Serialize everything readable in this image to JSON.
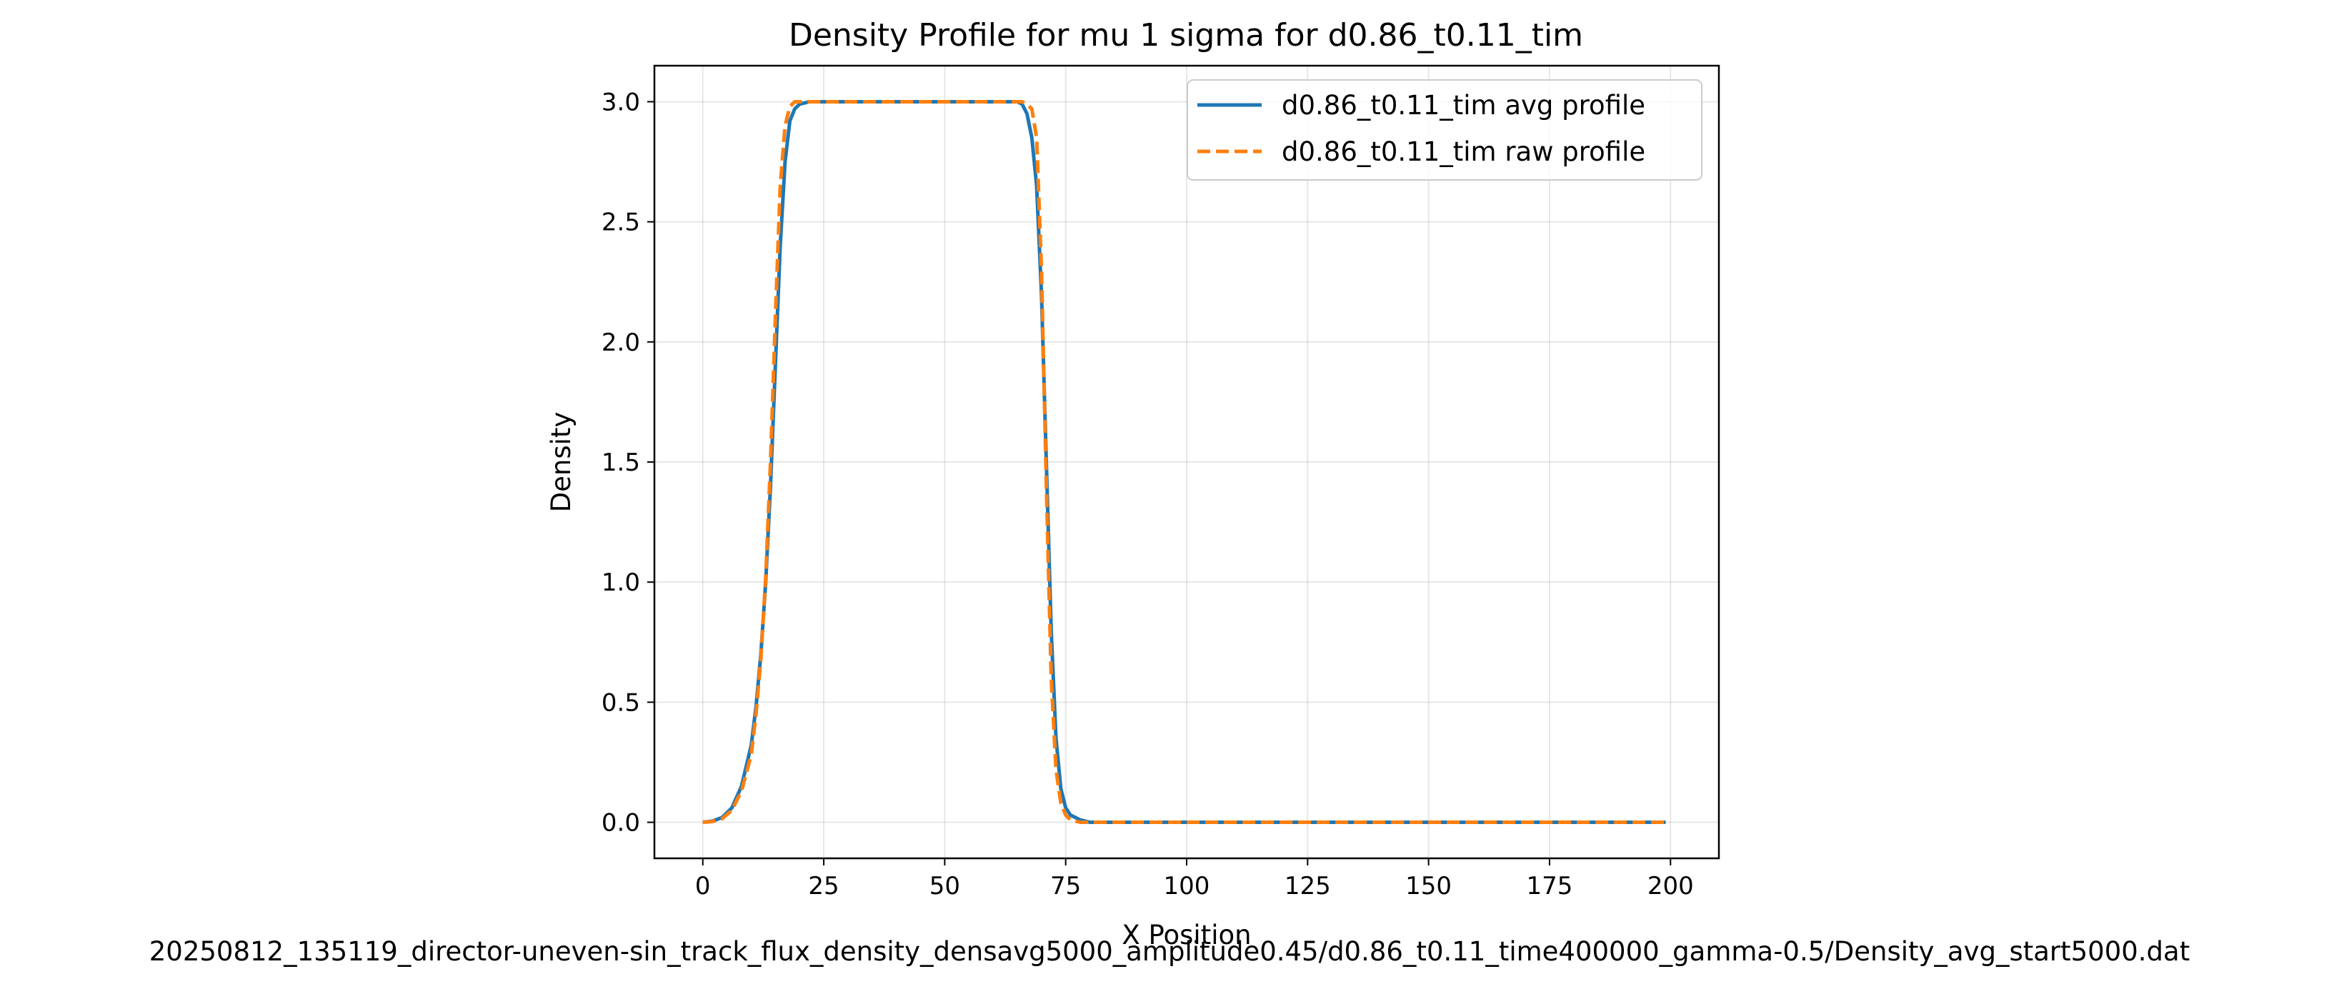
{
  "chart_data": {
    "type": "line",
    "title": "Density Profile for mu 1 sigma for d0.86_t0.11_tim",
    "xlabel": "X Position",
    "ylabel": "Density",
    "caption": "20250812_135119_director-uneven-sin_track_flux_density_densavg5000_amplitude0.45/d0.86_t0.11_time400000_gamma-0.5/Density_avg_start5000.dat",
    "xlim": [
      -10,
      210
    ],
    "ylim": [
      -0.15,
      3.15
    ],
    "x_ticks": [
      0,
      25,
      50,
      75,
      100,
      125,
      150,
      175,
      200
    ],
    "x_tick_labels": [
      "0",
      "25",
      "50",
      "75",
      "100",
      "125",
      "150",
      "175",
      "200"
    ],
    "y_ticks": [
      0.0,
      0.5,
      1.0,
      1.5,
      2.0,
      2.5,
      3.0
    ],
    "y_tick_labels": [
      "0.0",
      "0.5",
      "1.0",
      "1.5",
      "2.0",
      "2.5",
      "3.0"
    ],
    "grid": true,
    "legend_position": "upper right",
    "series": [
      {
        "name": "d0.86_t0.11_tim avg profile",
        "color": "#1f77b4",
        "style": "solid",
        "x": [
          0,
          2,
          4,
          6,
          8,
          10,
          11,
          12,
          13,
          14,
          15,
          16,
          17,
          18,
          19,
          20,
          22,
          25,
          30,
          40,
          50,
          60,
          65,
          66,
          67,
          68,
          69,
          70,
          71,
          72,
          73,
          74,
          75,
          76,
          78,
          80,
          90,
          100,
          125,
          150,
          175,
          199
        ],
        "y": [
          0.0,
          0.005,
          0.02,
          0.06,
          0.15,
          0.32,
          0.48,
          0.7,
          1.0,
          1.4,
          1.9,
          2.4,
          2.75,
          2.92,
          2.97,
          2.99,
          3.0,
          3.0,
          3.0,
          3.0,
          3.0,
          3.0,
          3.0,
          2.99,
          2.95,
          2.85,
          2.65,
          2.2,
          1.5,
          0.8,
          0.35,
          0.14,
          0.06,
          0.03,
          0.01,
          0.0,
          0.0,
          0.0,
          0.0,
          0.0,
          0.0,
          0.0
        ]
      },
      {
        "name": "d0.86_t0.11_tim raw profile",
        "color": "#ff7f0e",
        "style": "dashed",
        "x": [
          0,
          2,
          4,
          6,
          8,
          10,
          11,
          12,
          13,
          14,
          15,
          16,
          17,
          18,
          19,
          20,
          22,
          25,
          30,
          40,
          50,
          60,
          65,
          66,
          67,
          68,
          69,
          70,
          71,
          72,
          73,
          74,
          75,
          76,
          78,
          80,
          90,
          100,
          125,
          150,
          175,
          199
        ],
        "y": [
          0.0,
          0.003,
          0.015,
          0.05,
          0.13,
          0.28,
          0.45,
          0.68,
          1.02,
          1.5,
          2.1,
          2.65,
          2.9,
          2.98,
          3.0,
          3.0,
          3.0,
          3.0,
          3.0,
          3.0,
          3.0,
          3.0,
          3.0,
          3.0,
          2.99,
          2.97,
          2.85,
          2.3,
          1.4,
          0.6,
          0.22,
          0.08,
          0.03,
          0.01,
          0.0,
          0.0,
          0.0,
          0.0,
          0.0,
          0.0,
          0.0,
          0.0
        ]
      }
    ]
  }
}
